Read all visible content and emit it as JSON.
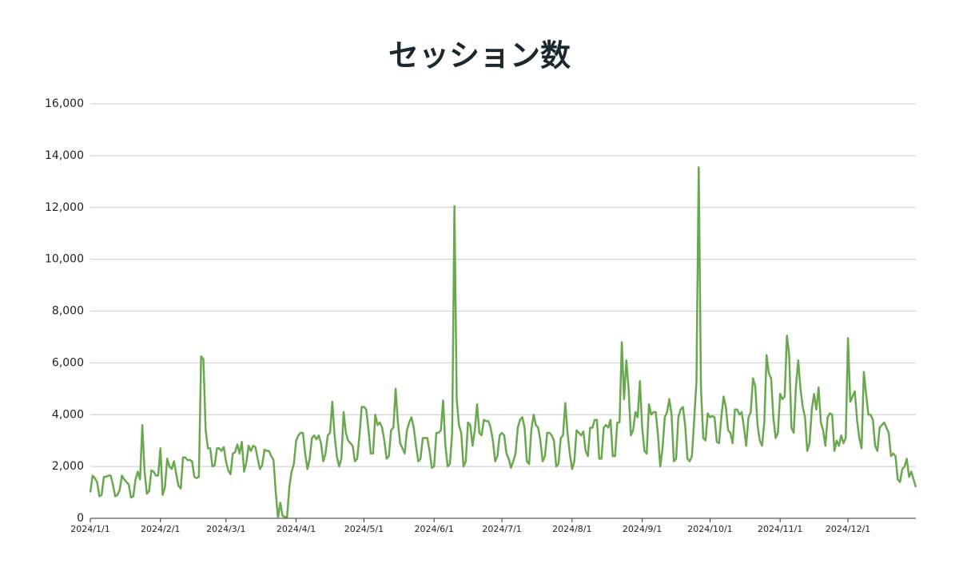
{
  "chart_data": {
    "type": "line",
    "title": "セッション数",
    "color": "#6aa84f",
    "grid": true,
    "ylim": [
      0,
      16000
    ],
    "yticks": [
      0,
      {
        "value": 2000,
        "label": "2,000"
      },
      {
        "value": 4000,
        "label": "4,000"
      },
      {
        "value": 6000,
        "label": "6,000"
      },
      {
        "value": 8000,
        "label": "8,000"
      },
      {
        "value": 10000,
        "label": "10,000"
      },
      {
        "value": 12000,
        "label": "12,000"
      },
      {
        "value": 14000,
        "label": "14,000"
      },
      {
        "value": 16000,
        "label": "16,000"
      }
    ],
    "xticks": [
      "2024/1/1",
      "2024/2/1",
      "2024/3/1",
      "2024/4/1",
      "2024/5/1",
      "2024/6/1",
      "2024/7/1",
      "2024/8/1",
      "2024/9/1",
      "2024/10/1",
      "2024/11/1",
      "2024/12/1"
    ],
    "x": [
      "2024/1/1",
      "2024/1/2",
      "2024/1/3",
      "2024/1/4",
      "2024/1/5",
      "2024/1/6",
      "2024/1/7",
      "2024/1/8",
      "2024/1/9",
      "2024/1/10",
      "2024/1/11",
      "2024/1/12",
      "2024/1/13",
      "2024/1/14",
      "2024/1/15",
      "2024/1/16",
      "2024/1/17",
      "2024/1/18",
      "2024/1/19",
      "2024/1/20",
      "2024/1/21",
      "2024/1/22",
      "2024/1/23",
      "2024/1/24",
      "2024/1/25",
      "2024/1/26",
      "2024/1/27",
      "2024/1/28",
      "2024/1/29",
      "2024/1/30",
      "2024/1/31",
      "2024/2/1",
      "2024/2/2",
      "2024/2/3",
      "2024/2/4",
      "2024/2/5",
      "2024/2/6",
      "2024/2/7",
      "2024/2/8",
      "2024/2/9",
      "2024/2/10",
      "2024/2/11",
      "2024/2/12",
      "2024/2/13",
      "2024/2/14",
      "2024/2/15",
      "2024/2/16",
      "2024/2/17",
      "2024/2/18",
      "2024/2/19",
      "2024/2/20",
      "2024/2/21",
      "2024/2/22",
      "2024/2/23",
      "2024/2/24",
      "2024/2/25",
      "2024/2/26",
      "2024/2/27",
      "2024/2/28",
      "2024/2/29",
      "2024/3/1",
      "2024/3/2",
      "2024/3/3",
      "2024/3/4",
      "2024/3/5",
      "2024/3/6",
      "2024/3/7",
      "2024/3/8",
      "2024/3/9",
      "2024/3/10",
      "2024/3/11",
      "2024/3/12",
      "2024/3/13",
      "2024/3/14",
      "2024/3/15",
      "2024/3/16",
      "2024/3/17",
      "2024/3/18",
      "2024/3/19",
      "2024/3/20",
      "2024/3/21",
      "2024/3/22",
      "2024/3/23",
      "2024/3/24",
      "2024/3/25",
      "2024/3/26",
      "2024/3/27",
      "2024/3/28",
      "2024/3/29",
      "2024/3/30",
      "2024/3/31",
      "2024/4/1",
      "2024/4/2",
      "2024/4/3",
      "2024/4/4",
      "2024/4/5",
      "2024/4/6",
      "2024/4/7",
      "2024/4/8",
      "2024/4/9",
      "2024/4/10",
      "2024/4/11",
      "2024/4/12",
      "2024/4/13",
      "2024/4/14",
      "2024/4/15",
      "2024/4/16",
      "2024/4/17",
      "2024/4/18",
      "2024/4/19",
      "2024/4/20",
      "2024/4/21",
      "2024/4/22",
      "2024/4/23",
      "2024/4/24",
      "2024/4/25",
      "2024/4/26",
      "2024/4/27",
      "2024/4/28",
      "2024/4/29",
      "2024/4/30",
      "2024/5/1",
      "2024/5/2",
      "2024/5/3",
      "2024/5/4",
      "2024/5/5",
      "2024/5/6",
      "2024/5/7",
      "2024/5/8",
      "2024/5/9",
      "2024/5/10",
      "2024/5/11",
      "2024/5/12",
      "2024/5/13",
      "2024/5/14",
      "2024/5/15",
      "2024/5/16",
      "2024/5/17",
      "2024/5/18",
      "2024/5/19",
      "2024/5/20",
      "2024/5/21",
      "2024/5/22",
      "2024/5/23",
      "2024/5/24",
      "2024/5/25",
      "2024/5/26",
      "2024/5/27",
      "2024/5/28",
      "2024/5/29",
      "2024/5/30",
      "2024/5/31",
      "2024/6/1",
      "2024/6/2",
      "2024/6/3",
      "2024/6/4",
      "2024/6/5",
      "2024/6/6",
      "2024/6/7",
      "2024/6/8",
      "2024/6/9",
      "2024/6/10",
      "2024/6/11",
      "2024/6/12",
      "2024/6/13",
      "2024/6/14",
      "2024/6/15",
      "2024/6/16",
      "2024/6/17",
      "2024/6/18",
      "2024/6/19",
      "2024/6/20",
      "2024/6/21",
      "2024/6/22",
      "2024/6/23",
      "2024/6/24",
      "2024/6/25",
      "2024/6/26",
      "2024/6/27",
      "2024/6/28",
      "2024/6/29",
      "2024/6/30",
      "2024/7/1",
      "2024/7/2",
      "2024/7/3",
      "2024/7/4",
      "2024/7/5",
      "2024/7/6",
      "2024/7/7",
      "2024/7/8",
      "2024/7/9",
      "2024/7/10",
      "2024/7/11",
      "2024/7/12",
      "2024/7/13",
      "2024/7/14",
      "2024/7/15",
      "2024/7/16",
      "2024/7/17",
      "2024/7/18",
      "2024/7/19",
      "2024/7/20",
      "2024/7/21",
      "2024/7/22",
      "2024/7/23",
      "2024/7/24",
      "2024/7/25",
      "2024/7/26",
      "2024/7/27",
      "2024/7/28",
      "2024/7/29",
      "2024/7/30",
      "2024/7/31",
      "2024/8/1",
      "2024/8/2",
      "2024/8/3",
      "2024/8/4",
      "2024/8/5",
      "2024/8/6",
      "2024/8/7",
      "2024/8/8",
      "2024/8/9",
      "2024/8/10",
      "2024/8/11",
      "2024/8/12",
      "2024/8/13",
      "2024/8/14",
      "2024/8/15",
      "2024/8/16",
      "2024/8/17",
      "2024/8/18",
      "2024/8/19",
      "2024/8/20",
      "2024/8/21",
      "2024/8/22",
      "2024/8/23",
      "2024/8/24",
      "2024/8/25",
      "2024/8/26",
      "2024/8/27",
      "2024/8/28",
      "2024/8/29",
      "2024/8/30",
      "2024/8/31",
      "2024/9/1",
      "2024/9/2",
      "2024/9/3",
      "2024/9/4",
      "2024/9/5",
      "2024/9/6",
      "2024/9/7",
      "2024/9/8",
      "2024/9/9",
      "2024/9/10",
      "2024/9/11",
      "2024/9/12",
      "2024/9/13",
      "2024/9/14",
      "2024/9/15",
      "2024/9/16",
      "2024/9/17",
      "2024/9/18",
      "2024/9/19",
      "2024/9/20",
      "2024/9/21",
      "2024/9/22",
      "2024/9/23",
      "2024/9/24",
      "2024/9/25",
      "2024/9/26",
      "2024/9/27",
      "2024/9/28",
      "2024/9/29",
      "2024/9/30",
      "2024/10/1",
      "2024/10/2",
      "2024/10/3",
      "2024/10/4",
      "2024/10/5",
      "2024/10/6",
      "2024/10/7",
      "2024/10/8",
      "2024/10/9",
      "2024/10/10",
      "2024/10/11",
      "2024/10/12",
      "2024/10/13",
      "2024/10/14",
      "2024/10/15",
      "2024/10/16",
      "2024/10/17",
      "2024/10/18",
      "2024/10/19",
      "2024/10/20",
      "2024/10/21",
      "2024/10/22",
      "2024/10/23",
      "2024/10/24",
      "2024/10/25",
      "2024/10/26",
      "2024/10/27",
      "2024/10/28",
      "2024/10/29",
      "2024/10/30",
      "2024/10/31",
      "2024/11/1",
      "2024/11/2",
      "2024/11/3",
      "2024/11/4",
      "2024/11/5",
      "2024/11/6",
      "2024/11/7",
      "2024/11/8",
      "2024/11/9",
      "2024/11/10",
      "2024/11/11",
      "2024/11/12",
      "2024/11/13",
      "2024/11/14",
      "2024/11/15",
      "2024/11/16",
      "2024/11/17",
      "2024/11/18",
      "2024/11/19",
      "2024/11/20",
      "2024/11/21",
      "2024/11/22",
      "2024/11/23",
      "2024/11/24",
      "2024/11/25",
      "2024/11/26",
      "2024/11/27",
      "2024/11/28",
      "2024/11/29",
      "2024/11/30",
      "2024/12/1",
      "2024/12/2",
      "2024/12/3",
      "2024/12/4",
      "2024/12/5",
      "2024/12/6",
      "2024/12/7",
      "2024/12/8",
      "2024/12/9",
      "2024/12/10",
      "2024/12/11",
      "2024/12/12",
      "2024/12/13",
      "2024/12/14",
      "2024/12/15",
      "2024/12/16",
      "2024/12/17",
      "2024/12/18",
      "2024/12/19",
      "2024/12/20",
      "2024/12/21",
      "2024/12/22",
      "2024/12/23",
      "2024/12/24",
      "2024/12/25",
      "2024/12/26",
      "2024/12/27",
      "2024/12/28",
      "2024/12/29",
      "2024/12/30",
      "2024/12/31"
    ],
    "values": [
      1000,
      1650,
      1550,
      1400,
      850,
      900,
      1600,
      1600,
      1650,
      1650,
      1300,
      850,
      900,
      1100,
      1650,
      1500,
      1400,
      1300,
      800,
      850,
      1500,
      1800,
      1500,
      3600,
      1800,
      950,
      1050,
      1850,
      1800,
      1650,
      1650,
      2700,
      900,
      1200,
      2300,
      2000,
      1900,
      2200,
      1700,
      1250,
      1150,
      2350,
      2350,
      2250,
      2250,
      2200,
      1600,
      1550,
      1600,
      6250,
      6150,
      3400,
      2700,
      2700,
      2000,
      2050,
      2700,
      2700,
      2600,
      2750,
      2200,
      1850,
      1700,
      2500,
      2550,
      2850,
      2500,
      2950,
      1800,
      2150,
      2800,
      2600,
      2800,
      2750,
      2300,
      1900,
      2050,
      2650,
      2600,
      2600,
      2400,
      2250,
      1000,
      0,
      600,
      100,
      50,
      50,
      1200,
      1800,
      2100,
      3000,
      3200,
      3300,
      3300,
      2500,
      1900,
      2300,
      3100,
      3200,
      3050,
      3200,
      2900,
      2200,
      2500,
      3200,
      3300,
      4500,
      3200,
      2400,
      2000,
      2300,
      4100,
      3300,
      3000,
      2900,
      2800,
      2200,
      2300,
      3200,
      4300,
      4300,
      4200,
      3400,
      2500,
      2500,
      4000,
      3600,
      3700,
      3500,
      3000,
      2300,
      2400,
      3400,
      3500,
      5000,
      3700,
      2900,
      2700,
      2500,
      3400,
      3700,
      3900,
      3500,
      2800,
      2200,
      2300,
      3100,
      3100,
      3100,
      2600,
      1950,
      2000,
      3300,
      3300,
      3400,
      4550,
      2800,
      2000,
      2100,
      3300,
      12050,
      4600,
      3600,
      3300,
      2000,
      2200,
      3700,
      3600,
      2800,
      3400,
      4400,
      3300,
      3200,
      3800,
      3750,
      3750,
      3500,
      3000,
      2200,
      2400,
      3200,
      3300,
      3200,
      2500,
      2300,
      1950,
      2200,
      2500,
      3500,
      3800,
      3900,
      3500,
      2200,
      2100,
      3400,
      4000,
      3600,
      3500,
      3000,
      2200,
      2400,
      3300,
      3300,
      3200,
      3000,
      2000,
      2100,
      3100,
      3200,
      4450,
      3300,
      2500,
      1900,
      2200,
      3400,
      3300,
      3200,
      3350,
      2600,
      2400,
      3500,
      3500,
      3800,
      3800,
      2300,
      2300,
      3500,
      3600,
      3500,
      3800,
      2400,
      2400,
      3700,
      3700,
      6800,
      4600,
      6100,
      5000,
      3200,
      3400,
      4100,
      3900,
      5300,
      3500,
      2600,
      2500,
      4400,
      4000,
      4100,
      4100,
      3200,
      2000,
      2700,
      3900,
      4100,
      4600,
      4000,
      2200,
      2300,
      3900,
      4200,
      4300,
      3600,
      2300,
      2200,
      2400,
      3800,
      5300,
      13550,
      5000,
      3100,
      3000,
      4050,
      3900,
      3950,
      3900,
      2950,
      2900,
      3900,
      4700,
      4300,
      3400,
      3300,
      2900,
      4200,
      4200,
      4000,
      4100,
      3500,
      2800,
      3900,
      4100,
      5400,
      5100,
      3600,
      3000,
      2800,
      3700,
      6300,
      5600,
      5400,
      3900,
      3100,
      3300,
      4800,
      4600,
      4700,
      7050,
      6300,
      3500,
      3300,
      5100,
      6100,
      5000,
      4300,
      3900,
      2600,
      2900,
      4200,
      4800,
      4200,
      5050,
      3700,
      3400,
      2800,
      3900,
      4050,
      4000,
      2600,
      3000,
      2800,
      3200,
      2900,
      3100,
      6950,
      4500,
      4700,
      4900,
      3800,
      3100,
      2700,
      5650,
      4800,
      4000,
      4000,
      3800,
      2800,
      2600,
      3500,
      3600,
      3700,
      3500,
      3300,
      2400,
      2500,
      2400,
      1500,
      1400,
      1900,
      2000,
      2300,
      1600,
      1800,
      1500,
      1200
    ]
  }
}
